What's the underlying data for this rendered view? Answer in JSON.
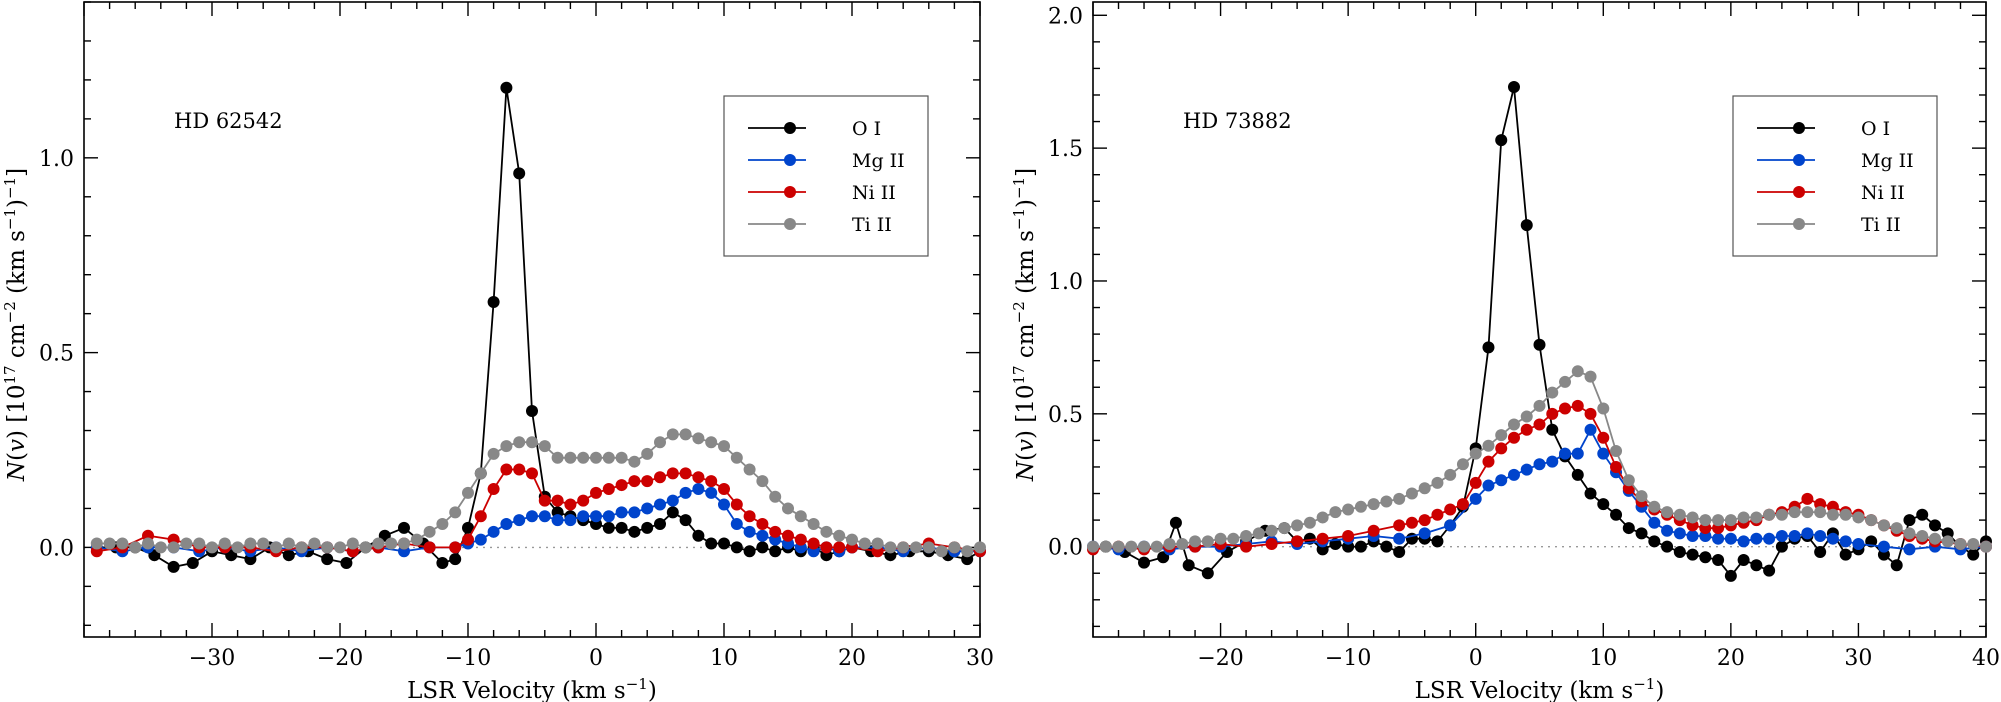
{
  "chart_data": [
    {
      "type": "line",
      "panel_label": "HD 62542",
      "xlabel": "LSR Velocity (km s",
      "xlabel_sup": "−1",
      "xlabel_end": ")",
      "ylabel": "N(v) [10^17 cm^-2 (km s^-1)^-1]",
      "xlim": [
        -40,
        30
      ],
      "ylim": [
        -0.23,
        1.4
      ],
      "xticks": [
        -30,
        -20,
        -10,
        0,
        10,
        20,
        30
      ],
      "yticks": [
        0.0,
        0.5,
        1.0
      ],
      "xtick_labels": [
        "−30",
        "−20",
        "−10",
        "0",
        "10",
        "20",
        "30"
      ],
      "ytick_labels": [
        "0.0",
        "0.5",
        "1.0"
      ],
      "legend": "top-right",
      "series": [
        {
          "name": "O I",
          "color": "#000000",
          "x": [
            -39,
            -37.5,
            -36,
            -34.5,
            -33,
            -31.5,
            -30,
            -28.5,
            -27,
            -25.5,
            -24,
            -22.5,
            -21,
            -19.5,
            -18,
            -16.5,
            -15,
            -13.5,
            -12,
            -11,
            -10,
            -9,
            -8,
            -7,
            -6,
            -5,
            -4,
            -3,
            -2,
            -1,
            0,
            1,
            2,
            3,
            4,
            5,
            6,
            7,
            8,
            9,
            10,
            11,
            12,
            13,
            14,
            15,
            16,
            17,
            18,
            19,
            20,
            21.5,
            23,
            24.5,
            26,
            27.5,
            29,
            30
          ],
          "y": [
            0.0,
            0.0,
            0.0,
            -0.02,
            -0.05,
            -0.04,
            -0.01,
            -0.02,
            -0.03,
            0.0,
            -0.02,
            -0.01,
            -0.03,
            -0.04,
            0.0,
            0.03,
            0.05,
            0.01,
            -0.04,
            -0.03,
            0.05,
            0.19,
            0.63,
            1.18,
            0.96,
            0.35,
            0.13,
            0.09,
            0.08,
            0.07,
            0.06,
            0.05,
            0.05,
            0.04,
            0.05,
            0.06,
            0.09,
            0.07,
            0.03,
            0.01,
            0.01,
            0.0,
            -0.01,
            0.0,
            -0.01,
            0.0,
            -0.01,
            0.0,
            -0.02,
            -0.01,
            0.0,
            -0.01,
            -0.02,
            -0.01,
            -0.01,
            -0.02,
            -0.03,
            -0.01
          ]
        },
        {
          "name": "Mg II",
          "color": "#0044cc",
          "x": [
            -39,
            -37,
            -35,
            -33,
            -31,
            -29,
            -27,
            -25,
            -23,
            -21,
            -19,
            -17,
            -15,
            -13,
            -11,
            -10,
            -9,
            -8,
            -7,
            -6,
            -5,
            -4,
            -3,
            -2,
            -1,
            0,
            1,
            2,
            3,
            4,
            5,
            6,
            7,
            8,
            9,
            10,
            11,
            12,
            13,
            14,
            15,
            16,
            17,
            18,
            19,
            20,
            22,
            24,
            26,
            28,
            30
          ],
          "y": [
            0.0,
            -0.01,
            0.0,
            0.0,
            -0.01,
            0.0,
            -0.01,
            0.0,
            -0.01,
            0.0,
            -0.01,
            0.0,
            -0.01,
            0.0,
            0.0,
            0.01,
            0.02,
            0.04,
            0.06,
            0.07,
            0.08,
            0.08,
            0.07,
            0.07,
            0.08,
            0.08,
            0.08,
            0.09,
            0.09,
            0.1,
            0.11,
            0.12,
            0.14,
            0.15,
            0.14,
            0.11,
            0.06,
            0.04,
            0.03,
            0.02,
            0.01,
            0.0,
            -0.01,
            0.0,
            -0.01,
            0.0,
            0.0,
            -0.01,
            0.0,
            -0.01,
            -0.01
          ]
        },
        {
          "name": "Ni II",
          "color": "#cc0000",
          "x": [
            -39,
            -37,
            -35,
            -33,
            -31,
            -29,
            -27,
            -25,
            -23,
            -21,
            -19,
            -17,
            -15,
            -13,
            -11,
            -10,
            -9,
            -8,
            -7,
            -6,
            -5,
            -4,
            -3,
            -2,
            -1,
            0,
            1,
            2,
            3,
            4,
            5,
            6,
            7,
            8,
            9,
            10,
            11,
            12,
            13,
            14,
            15,
            16,
            17,
            18,
            19,
            20,
            22,
            24,
            26,
            28,
            30
          ],
          "y": [
            -0.01,
            0.0,
            0.03,
            0.02,
            0.0,
            0.0,
            0.0,
            -0.01,
            0.0,
            0.0,
            -0.01,
            0.0,
            0.01,
            0.0,
            0.0,
            0.02,
            0.08,
            0.15,
            0.2,
            0.2,
            0.19,
            0.12,
            0.12,
            0.11,
            0.12,
            0.14,
            0.15,
            0.16,
            0.17,
            0.17,
            0.18,
            0.19,
            0.19,
            0.18,
            0.17,
            0.15,
            0.11,
            0.08,
            0.06,
            0.04,
            0.03,
            0.02,
            0.01,
            0.0,
            0.0,
            0.0,
            -0.01,
            0.0,
            0.01,
            0.0,
            -0.01
          ]
        },
        {
          "name": "Ti II",
          "color": "#888888",
          "x": [
            -39,
            -38,
            -37,
            -36,
            -35,
            -34,
            -33,
            -32,
            -31,
            -30,
            -29,
            -28,
            -27,
            -26,
            -25,
            -24,
            -23,
            -22,
            -21,
            -20,
            -19,
            -18,
            -17,
            -16,
            -15,
            -14,
            -13,
            -12,
            -11,
            -10,
            -9,
            -8,
            -7,
            -6,
            -5,
            -4,
            -3,
            -2,
            -1,
            0,
            1,
            2,
            3,
            4,
            5,
            6,
            7,
            8,
            9,
            10,
            11,
            12,
            13,
            14,
            15,
            16,
            17,
            18,
            19,
            20,
            21,
            22,
            23,
            24,
            25,
            26,
            27,
            28,
            29,
            30
          ],
          "y": [
            0.01,
            0.01,
            0.01,
            0.0,
            0.01,
            0.0,
            0.0,
            0.01,
            0.01,
            0.0,
            0.01,
            0.0,
            0.01,
            0.01,
            0.0,
            0.01,
            0.0,
            0.01,
            0.0,
            0.0,
            0.01,
            0.0,
            0.01,
            0.01,
            0.01,
            0.02,
            0.04,
            0.06,
            0.09,
            0.14,
            0.19,
            0.24,
            0.26,
            0.27,
            0.27,
            0.26,
            0.23,
            0.23,
            0.23,
            0.23,
            0.23,
            0.23,
            0.22,
            0.24,
            0.27,
            0.29,
            0.29,
            0.28,
            0.27,
            0.26,
            0.23,
            0.2,
            0.17,
            0.13,
            0.1,
            0.08,
            0.06,
            0.04,
            0.03,
            0.02,
            0.01,
            0.01,
            0.0,
            0.0,
            0.0,
            0.0,
            -0.01,
            0.0,
            -0.01,
            0.0
          ]
        }
      ]
    },
    {
      "type": "line",
      "panel_label": "HD 73882",
      "xlabel": "LSR Velocity (km s",
      "xlabel_sup": "−1",
      "xlabel_end": ")",
      "ylabel": "N(v) [10^17 cm^-2 (km s^-1)^-1]",
      "xlim": [
        -30,
        40
      ],
      "ylim": [
        -0.34,
        2.05
      ],
      "xticks": [
        -20,
        -10,
        0,
        10,
        20,
        30,
        40
      ],
      "yticks": [
        0.0,
        0.5,
        1.0,
        1.5,
        2.0
      ],
      "xtick_labels": [
        "−20",
        "−10",
        "0",
        "10",
        "20",
        "30",
        "40"
      ],
      "ytick_labels": [
        "0.0",
        "0.5",
        "1.0",
        "1.5",
        "2.0"
      ],
      "legend": "top-right",
      "series": [
        {
          "name": "O I",
          "color": "#000000",
          "x": [
            -29,
            -27.5,
            -26,
            -24.5,
            -23.5,
            -22.5,
            -21,
            -19.5,
            -18,
            -16.5,
            -15,
            -14,
            -13,
            -12,
            -11,
            -10,
            -9,
            -8,
            -7,
            -6,
            -5,
            -4,
            -3,
            -2,
            -1,
            0,
            1,
            2,
            3,
            4,
            5,
            6,
            7,
            8,
            9,
            10,
            11,
            12,
            13,
            14,
            15,
            16,
            17,
            18,
            19,
            20,
            21,
            22,
            23,
            24,
            25,
            26,
            27,
            28,
            29,
            30,
            31,
            32,
            33,
            34,
            35,
            36,
            37,
            38,
            39,
            40
          ],
          "y": [
            0.0,
            -0.02,
            -0.06,
            -0.04,
            0.09,
            -0.07,
            -0.1,
            -0.02,
            0.02,
            0.06,
            0.07,
            0.02,
            0.03,
            -0.01,
            0.01,
            0.0,
            0.0,
            0.02,
            0.0,
            -0.02,
            0.03,
            0.03,
            0.02,
            0.08,
            0.15,
            0.37,
            0.75,
            1.53,
            1.73,
            1.21,
            0.76,
            0.44,
            0.34,
            0.27,
            0.2,
            0.16,
            0.12,
            0.07,
            0.05,
            0.02,
            0.0,
            -0.02,
            -0.03,
            -0.04,
            -0.05,
            -0.11,
            -0.05,
            -0.07,
            -0.09,
            0.0,
            0.03,
            0.04,
            -0.02,
            0.05,
            -0.03,
            -0.01,
            0.02,
            -0.03,
            -0.07,
            0.1,
            0.12,
            0.08,
            0.05,
            0.0,
            -0.03,
            0.02
          ]
        },
        {
          "name": "Mg II",
          "color": "#0044cc",
          "x": [
            -30,
            -28,
            -26,
            -24,
            -22,
            -20,
            -18,
            -16,
            -14,
            -12,
            -10,
            -8,
            -6,
            -4,
            -2,
            0,
            1,
            2,
            3,
            4,
            5,
            6,
            7,
            8,
            9,
            10,
            11,
            12,
            13,
            14,
            15,
            16,
            17,
            18,
            19,
            20,
            21,
            22,
            23,
            24,
            25,
            26,
            27,
            28,
            29,
            30,
            32,
            34,
            36,
            38,
            40
          ],
          "y": [
            0.0,
            -0.01,
            0.0,
            -0.01,
            0.0,
            0.0,
            0.01,
            0.02,
            0.01,
            0.02,
            0.03,
            0.04,
            0.03,
            0.05,
            0.08,
            0.18,
            0.23,
            0.25,
            0.27,
            0.29,
            0.31,
            0.32,
            0.35,
            0.35,
            0.44,
            0.35,
            0.28,
            0.21,
            0.15,
            0.09,
            0.06,
            0.05,
            0.04,
            0.04,
            0.03,
            0.03,
            0.02,
            0.03,
            0.03,
            0.04,
            0.04,
            0.05,
            0.04,
            0.03,
            0.02,
            0.01,
            0.0,
            -0.01,
            0.0,
            -0.01,
            0.0
          ]
        },
        {
          "name": "Ni II",
          "color": "#cc0000",
          "x": [
            -30,
            -28,
            -26,
            -24,
            -22,
            -20,
            -18,
            -16,
            -14,
            -12,
            -10,
            -8,
            -6,
            -5,
            -4,
            -3,
            -2,
            -1,
            0,
            1,
            2,
            3,
            4,
            5,
            6,
            7,
            8,
            9,
            10,
            11,
            12,
            13,
            14,
            15,
            16,
            17,
            18,
            19,
            20,
            21,
            22,
            23,
            24,
            25,
            26,
            27,
            28,
            29,
            30,
            31,
            32,
            33,
            34,
            35,
            36,
            38,
            40
          ],
          "y": [
            -0.01,
            0.0,
            -0.01,
            0.0,
            0.0,
            0.01,
            0.0,
            0.01,
            0.02,
            0.03,
            0.04,
            0.06,
            0.08,
            0.09,
            0.1,
            0.12,
            0.14,
            0.16,
            0.24,
            0.32,
            0.37,
            0.41,
            0.44,
            0.46,
            0.5,
            0.52,
            0.53,
            0.5,
            0.41,
            0.3,
            0.22,
            0.17,
            0.14,
            0.12,
            0.1,
            0.08,
            0.07,
            0.07,
            0.08,
            0.09,
            0.1,
            0.12,
            0.13,
            0.15,
            0.18,
            0.16,
            0.15,
            0.13,
            0.12,
            0.1,
            0.08,
            0.06,
            0.04,
            0.03,
            0.02,
            0.01,
            0.0
          ]
        },
        {
          "name": "Ti II",
          "color": "#888888",
          "x": [
            -30,
            -29,
            -28,
            -27,
            -26,
            -25,
            -24,
            -23,
            -22,
            -21,
            -20,
            -19,
            -18,
            -17,
            -16,
            -15,
            -14,
            -13,
            -12,
            -11,
            -10,
            -9,
            -8,
            -7,
            -6,
            -5,
            -4,
            -3,
            -2,
            -1,
            0,
            1,
            2,
            3,
            4,
            5,
            6,
            7,
            8,
            9,
            10,
            11,
            12,
            13,
            14,
            15,
            16,
            17,
            18,
            19,
            20,
            21,
            22,
            23,
            24,
            25,
            26,
            27,
            28,
            29,
            30,
            31,
            32,
            33,
            34,
            35,
            36,
            37,
            38,
            39,
            40
          ],
          "y": [
            0.0,
            0.0,
            0.0,
            0.0,
            0.0,
            0.0,
            0.01,
            0.01,
            0.02,
            0.02,
            0.03,
            0.03,
            0.04,
            0.05,
            0.06,
            0.07,
            0.08,
            0.09,
            0.11,
            0.13,
            0.14,
            0.15,
            0.16,
            0.17,
            0.18,
            0.2,
            0.22,
            0.24,
            0.27,
            0.31,
            0.35,
            0.38,
            0.42,
            0.46,
            0.49,
            0.53,
            0.58,
            0.62,
            0.66,
            0.64,
            0.52,
            0.36,
            0.25,
            0.19,
            0.15,
            0.13,
            0.12,
            0.11,
            0.1,
            0.1,
            0.1,
            0.11,
            0.11,
            0.12,
            0.12,
            0.13,
            0.13,
            0.13,
            0.12,
            0.12,
            0.11,
            0.1,
            0.08,
            0.07,
            0.05,
            0.04,
            0.03,
            0.02,
            0.01,
            0.01,
            0.0
          ]
        }
      ]
    }
  ]
}
